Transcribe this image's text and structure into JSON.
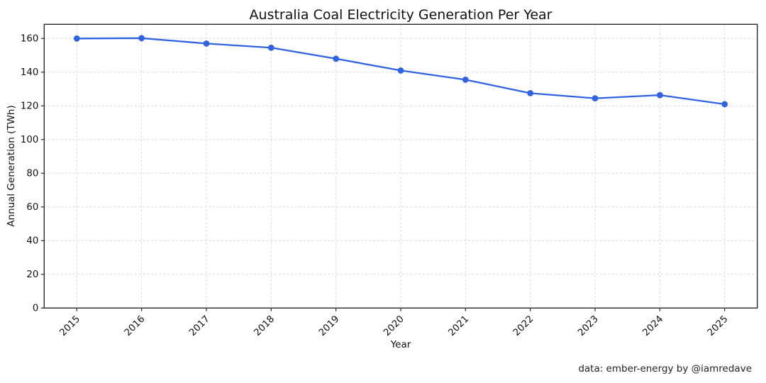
{
  "figure": {
    "attribution": "data: ember-energy by @iamredave"
  },
  "chart_data": {
    "type": "line",
    "title": "Australia Coal Electricity Generation Per Year",
    "xlabel": "Year",
    "ylabel": "Annual Generation (TWh)",
    "categories": [
      "2015",
      "2016",
      "2017",
      "2018",
      "2019",
      "2020",
      "2021",
      "2022",
      "2023",
      "2024",
      "2025"
    ],
    "series": [
      {
        "name": "Annual coal generation",
        "values": [
          160.0,
          160.2,
          157.0,
          154.5,
          148.0,
          141.0,
          135.5,
          127.5,
          124.5,
          126.4,
          121.0
        ]
      }
    ],
    "yticks": [
      0,
      20,
      40,
      60,
      80,
      100,
      120,
      140,
      160
    ],
    "ylim": [
      0,
      168.4
    ],
    "grid": true,
    "grid_style": "dashed",
    "legend": "none",
    "line_color": "#2f63e4",
    "marker": "circle",
    "background_color": "#ffffff",
    "annotation": "data: ember-energy by @iamredave"
  }
}
